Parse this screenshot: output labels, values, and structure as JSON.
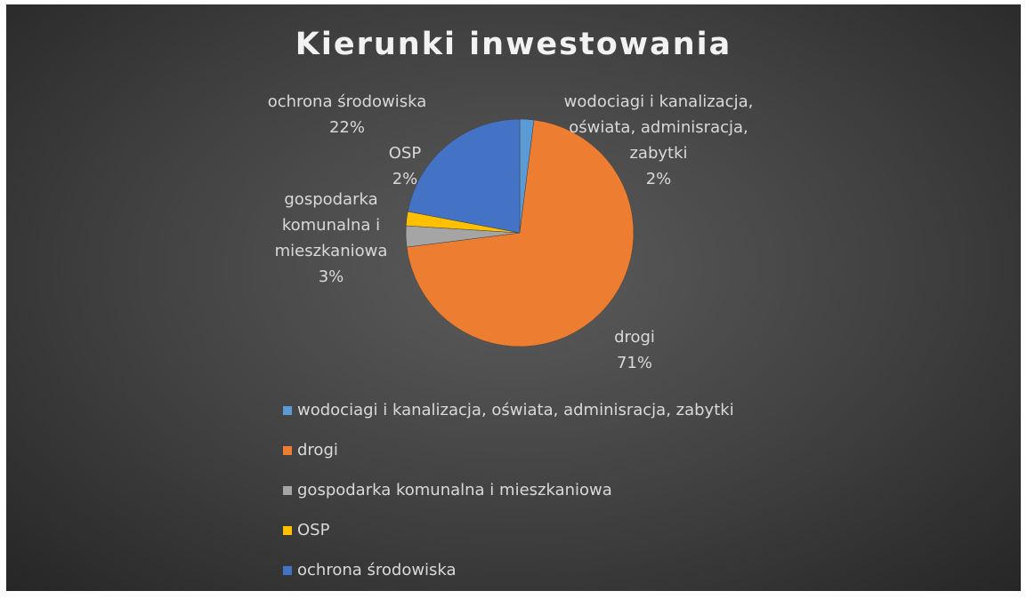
{
  "chart_data": {
    "type": "pie",
    "title": "Kierunki inwestowania",
    "categories": [
      "wodociagi i kanalizacja, oświata, adminisracja, zabytki",
      "drogi",
      "gospodarka komunalna i mieszkaniowa",
      "OSP",
      "ochrona środowiska"
    ],
    "values": [
      2,
      71,
      3,
      2,
      22
    ],
    "value_labels": [
      "2%",
      "71%",
      "3%",
      "2%",
      "22%"
    ],
    "colors": [
      "#5b9bd5",
      "#ed7d31",
      "#a5a5a5",
      "#ffc000",
      "#4472c4"
    ],
    "legend": "bottom"
  }
}
